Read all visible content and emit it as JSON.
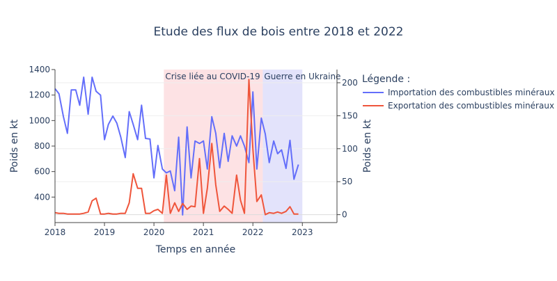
{
  "chart_data": {
    "type": "line",
    "title": "Etude des flux de bois entre 2018 et 2022",
    "xlabel": "Temps en année",
    "ylabel_left": "Poids en kt",
    "ylabel_right": "Poids en kt",
    "x_range": [
      2018,
      2023.7
    ],
    "x_ticks": [
      "2018",
      "2019",
      "2020",
      "2021",
      "2022",
      "2023"
    ],
    "y_left_range": [
      200,
      1400
    ],
    "y_left_ticks": [
      400,
      600,
      800,
      1000,
      1200,
      1400
    ],
    "y_right_range": [
      -12,
      220
    ],
    "y_right_ticks": [
      0,
      50,
      100,
      150,
      200
    ],
    "legend": {
      "title": "Légende :",
      "position": "right"
    },
    "bands": [
      {
        "label": "Crise liée au COVID-19",
        "x0": 2020.2,
        "x1": 2022.2,
        "color": "#fde2e4"
      },
      {
        "label": "Guerre en Ukraine",
        "x0": 2022.2,
        "x1": 2023.0,
        "color": "#e3e3fb"
      }
    ],
    "series": [
      {
        "name": "Importation des combustibles minéraux",
        "axis": "left",
        "color": "#636efa",
        "x": [
          2018.0,
          2018.08,
          2018.17,
          2018.25,
          2018.33,
          2018.42,
          2018.5,
          2018.58,
          2018.67,
          2018.75,
          2018.83,
          2018.92,
          2019.0,
          2019.08,
          2019.17,
          2019.25,
          2019.33,
          2019.42,
          2019.5,
          2019.58,
          2019.67,
          2019.75,
          2019.83,
          2019.92,
          2020.0,
          2020.08,
          2020.17,
          2020.25,
          2020.33,
          2020.42,
          2020.5,
          2020.58,
          2020.67,
          2020.75,
          2020.83,
          2020.92,
          2021.0,
          2021.08,
          2021.17,
          2021.25,
          2021.33,
          2021.42,
          2021.5,
          2021.58,
          2021.67,
          2021.75,
          2021.83,
          2021.92,
          2022.0,
          2022.08,
          2022.17,
          2022.25,
          2022.33,
          2022.42,
          2022.5,
          2022.58,
          2022.67,
          2022.75,
          2022.83,
          2022.92
        ],
        "values": [
          1250,
          1210,
          1030,
          900,
          1240,
          1240,
          1120,
          1340,
          1050,
          1340,
          1230,
          1200,
          850,
          970,
          1035,
          980,
          870,
          710,
          1070,
          970,
          850,
          1120,
          860,
          855,
          550,
          805,
          620,
          590,
          605,
          450,
          870,
          260,
          950,
          550,
          840,
          820,
          840,
          620,
          1030,
          900,
          630,
          900,
          680,
          880,
          800,
          880,
          800,
          670,
          1225,
          620,
          1020,
          895,
          670,
          840,
          740,
          770,
          625,
          845,
          540,
          655
        ]
      },
      {
        "name": "Exportation des combustibles minéraux",
        "axis": "right",
        "color": "#ef553b",
        "x": [
          2018.0,
          2018.08,
          2018.17,
          2018.25,
          2018.33,
          2018.42,
          2018.5,
          2018.58,
          2018.67,
          2018.75,
          2018.83,
          2018.92,
          2019.0,
          2019.08,
          2019.17,
          2019.25,
          2019.33,
          2019.42,
          2019.5,
          2019.58,
          2019.67,
          2019.75,
          2019.83,
          2019.92,
          2020.0,
          2020.08,
          2020.17,
          2020.25,
          2020.33,
          2020.42,
          2020.5,
          2020.58,
          2020.67,
          2020.75,
          2020.83,
          2020.92,
          2021.0,
          2021.08,
          2021.17,
          2021.25,
          2021.33,
          2021.42,
          2021.5,
          2021.58,
          2021.67,
          2021.75,
          2021.83,
          2021.92,
          2022.0,
          2022.08,
          2022.17,
          2022.25,
          2022.33,
          2022.42,
          2022.5,
          2022.58,
          2022.67,
          2022.75,
          2022.83,
          2022.92
        ],
        "values": [
          3,
          2,
          2,
          1,
          1,
          1,
          1,
          2,
          4,
          21,
          25,
          1,
          1,
          2,
          1,
          1,
          2,
          2,
          18,
          62,
          40,
          40,
          2,
          2,
          6,
          8,
          2,
          60,
          2,
          18,
          5,
          17,
          8,
          13,
          12,
          85,
          2,
          40,
          108,
          45,
          5,
          13,
          8,
          2,
          60,
          22,
          2,
          205,
          100,
          20,
          30,
          0,
          3,
          2,
          4,
          2,
          5,
          12,
          1,
          1
        ]
      }
    ]
  }
}
